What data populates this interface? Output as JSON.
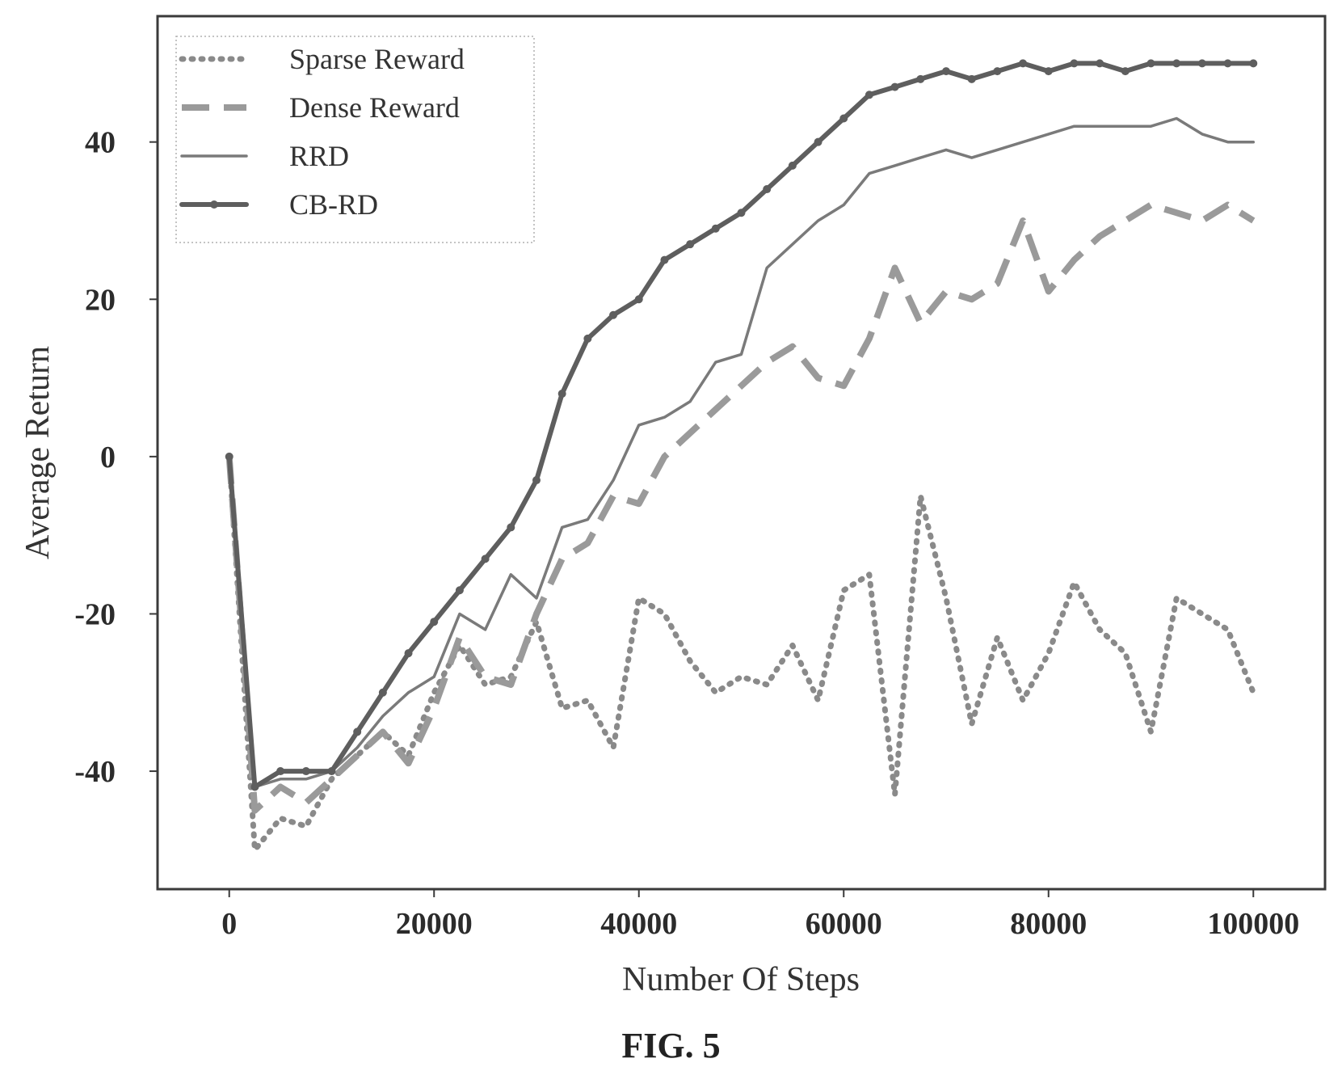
{
  "figure": {
    "caption": "FIG. 5"
  },
  "chart_data": {
    "type": "line",
    "title": "",
    "xlabel": "Number Of Steps",
    "ylabel": "Average Return",
    "xlim": [
      -7000,
      107000
    ],
    "ylim": [
      -55,
      56
    ],
    "xticks": [
      0,
      20000,
      40000,
      60000,
      80000,
      100000
    ],
    "xtick_labels": [
      "0",
      "20000",
      "40000",
      "60000",
      "80000",
      "100000"
    ],
    "yticks": [
      -40,
      -20,
      0,
      20,
      40
    ],
    "ytick_labels": [
      "-40",
      "-20",
      "0",
      "20",
      "40"
    ],
    "grid": false,
    "legend_position": "top-left",
    "x": [
      0,
      2500,
      5000,
      7500,
      10000,
      12500,
      15000,
      17500,
      20000,
      22500,
      25000,
      27500,
      30000,
      32500,
      35000,
      37500,
      40000,
      42500,
      45000,
      47500,
      50000,
      52500,
      55000,
      57500,
      60000,
      62500,
      65000,
      67500,
      70000,
      72500,
      75000,
      77500,
      80000,
      82500,
      85000,
      87500,
      90000,
      92500,
      95000,
      97500,
      100000
    ],
    "series": [
      {
        "name": "Sparse Reward",
        "style": "dotted",
        "color": "#8a8a8a",
        "values": [
          0,
          -50,
          -46,
          -47,
          -41,
          -38,
          -35,
          -38,
          -30,
          -24,
          -29,
          -28,
          -21,
          -32,
          -31,
          -37,
          -18,
          -20,
          -26,
          -30,
          -28,
          -29,
          -24,
          -31,
          -17,
          -15,
          -43,
          -5,
          -18,
          -34,
          -23,
          -31,
          -25,
          -16,
          -22,
          -25,
          -35,
          -18,
          -20,
          -22,
          -30
        ]
      },
      {
        "name": "Dense Reward",
        "style": "dashed",
        "color": "#9a9a9a",
        "values": [
          0,
          -45,
          -42,
          -44,
          -41,
          -38,
          -35,
          -39,
          -32,
          -23,
          -28,
          -29,
          -20,
          -13,
          -11,
          -5,
          -6,
          0,
          3,
          6,
          9,
          12,
          14,
          10,
          9,
          15,
          24,
          17,
          21,
          20,
          22,
          30,
          21,
          25,
          28,
          30,
          32,
          31,
          30,
          32,
          30
        ]
      },
      {
        "name": "RRD",
        "style": "solid",
        "color": "#7a7a7a",
        "values": [
          0,
          -42,
          -41,
          -41,
          -40,
          -37,
          -33,
          -30,
          -28,
          -20,
          -22,
          -15,
          -18,
          -9,
          -8,
          -3,
          4,
          5,
          7,
          12,
          13,
          24,
          27,
          30,
          32,
          36,
          37,
          38,
          39,
          38,
          39,
          40,
          41,
          42,
          42,
          42,
          42,
          43,
          41,
          40,
          40
        ]
      },
      {
        "name": "CB-RD",
        "style": "solid-markers",
        "color": "#5e5e5e",
        "values": [
          0,
          -42,
          -40,
          -40,
          -40,
          -35,
          -30,
          -25,
          -21,
          -17,
          -13,
          -9,
          -3,
          8,
          15,
          18,
          20,
          25,
          27,
          29,
          31,
          34,
          37,
          40,
          43,
          46,
          47,
          48,
          49,
          48,
          49,
          50,
          49,
          50,
          50,
          49,
          50,
          50,
          50,
          50,
          50
        ]
      }
    ]
  }
}
